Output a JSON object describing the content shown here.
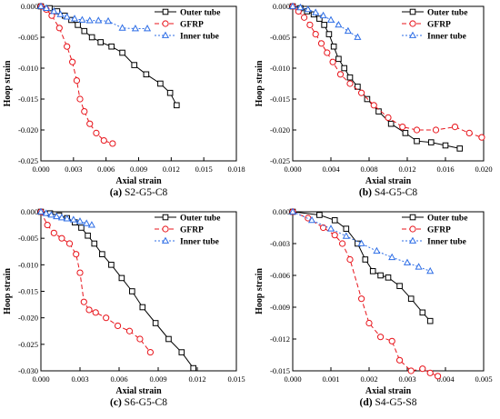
{
  "chart_data": [
    {
      "type": "line",
      "caption_letter": "(a)",
      "caption_text": "S2-G5-C8",
      "xlabel": "Axial strain",
      "ylabel": "Hoop strain",
      "xlim": [
        0,
        0.018
      ],
      "ylim": [
        -0.025,
        0
      ],
      "xticks": [
        0,
        0.003,
        0.006,
        0.009,
        0.012,
        0.015,
        0.018
      ],
      "xtick_labels": [
        "0.000",
        "0.003",
        "0.006",
        "0.009",
        "0.012",
        "0.015",
        "0.018"
      ],
      "yticks": [
        0,
        -0.005,
        -0.01,
        -0.015,
        -0.02,
        -0.025
      ],
      "ytick_labels": [
        "0.000",
        "-0.005",
        "-0.010",
        "-0.015",
        "-0.020",
        "-0.025"
      ],
      "legend_position": "top-right",
      "series": [
        {
          "name": "Outer tube",
          "color": "#000000",
          "marker": "square",
          "dash": "",
          "x": [
            0,
            0.0008,
            0.0015,
            0.0022,
            0.0028,
            0.0034,
            0.004,
            0.0047,
            0.0055,
            0.0065,
            0.0075,
            0.0086,
            0.0097,
            0.011,
            0.0119,
            0.0125
          ],
          "y": [
            0,
            -0.0003,
            -0.0008,
            -0.0015,
            -0.0022,
            -0.003,
            -0.004,
            -0.005,
            -0.0058,
            -0.0065,
            -0.0075,
            -0.0095,
            -0.011,
            -0.0125,
            -0.014,
            -0.016
          ]
        },
        {
          "name": "GFRP",
          "color": "#e8141b",
          "marker": "circle",
          "dash": "5,3",
          "x": [
            0,
            0.0005,
            0.001,
            0.0017,
            0.0024,
            0.0029,
            0.0033,
            0.0036,
            0.004,
            0.0045,
            0.0051,
            0.0058,
            0.0066
          ],
          "y": [
            0,
            -0.0005,
            -0.0015,
            -0.0035,
            -0.0065,
            -0.009,
            -0.012,
            -0.015,
            -0.017,
            -0.019,
            -0.0205,
            -0.0217,
            -0.0222
          ]
        },
        {
          "name": "Inner tube",
          "color": "#2e6ee6",
          "marker": "triangle",
          "dash": "2,2",
          "x": [
            0,
            0.0005,
            0.0012,
            0.0018,
            0.0024,
            0.0031,
            0.0038,
            0.0045,
            0.0053,
            0.0062,
            0.0075,
            0.0087,
            0.0098
          ],
          "y": [
            0,
            -0.0003,
            -0.0008,
            -0.0013,
            -0.0017,
            -0.002,
            -0.0022,
            -0.0023,
            -0.0023,
            -0.0024,
            -0.0035,
            -0.0036,
            -0.0036
          ]
        }
      ]
    },
    {
      "type": "line",
      "caption_letter": "(b)",
      "caption_text": "S4-G5-C8",
      "xlabel": "Axial strain",
      "ylabel": "Hoop strain",
      "xlim": [
        0,
        0.02
      ],
      "ylim": [
        -0.025,
        0
      ],
      "xticks": [
        0,
        0.004,
        0.008,
        0.012,
        0.016,
        0.02
      ],
      "xtick_labels": [
        "0.000",
        "0.004",
        "0.008",
        "0.012",
        "0.016",
        "0.020"
      ],
      "yticks": [
        0,
        -0.005,
        -0.01,
        -0.015,
        -0.02,
        -0.025
      ],
      "ytick_labels": [
        "0.000",
        "-0.005",
        "-0.010",
        "-0.015",
        "-0.020",
        "-0.025"
      ],
      "legend_position": "top-right",
      "series": [
        {
          "name": "Outer tube",
          "color": "#000000",
          "marker": "square",
          "dash": "",
          "x": [
            0,
            0.0008,
            0.0015,
            0.0022,
            0.0028,
            0.0033,
            0.0038,
            0.0043,
            0.0048,
            0.0054,
            0.006,
            0.0068,
            0.0078,
            0.009,
            0.0103,
            0.0118,
            0.013,
            0.0145,
            0.016,
            0.0175
          ],
          "y": [
            0,
            -0.0003,
            -0.0008,
            -0.0013,
            -0.002,
            -0.003,
            -0.0045,
            -0.0065,
            -0.0085,
            -0.01,
            -0.0115,
            -0.013,
            -0.015,
            -0.017,
            -0.019,
            -0.0205,
            -0.0218,
            -0.022,
            -0.0225,
            -0.023
          ]
        },
        {
          "name": "GFRP",
          "color": "#e8141b",
          "marker": "circle",
          "dash": "5,3",
          "x": [
            0,
            0.0006,
            0.0012,
            0.0018,
            0.0024,
            0.003,
            0.0036,
            0.0042,
            0.005,
            0.006,
            0.0072,
            0.0085,
            0.01,
            0.0115,
            0.013,
            0.015,
            0.017,
            0.0185,
            0.0198
          ],
          "y": [
            0,
            -0.0008,
            -0.0018,
            -0.003,
            -0.0045,
            -0.006,
            -0.0075,
            -0.009,
            -0.011,
            -0.0125,
            -0.014,
            -0.016,
            -0.018,
            -0.0195,
            -0.02,
            -0.02,
            -0.0195,
            -0.0205,
            -0.0212
          ]
        },
        {
          "name": "Inner tube",
          "color": "#2e6ee6",
          "marker": "triangle",
          "dash": "2,2",
          "x": [
            0,
            0.0008,
            0.0016,
            0.0024,
            0.0032,
            0.004,
            0.0048,
            0.0058,
            0.0068
          ],
          "y": [
            0,
            -0.0002,
            -0.0005,
            -0.001,
            -0.0015,
            -0.0022,
            -0.003,
            -0.004,
            -0.005
          ]
        }
      ]
    },
    {
      "type": "line",
      "caption_letter": "(c)",
      "caption_text": "S6-G5-C8",
      "xlabel": "Axial strain",
      "ylabel": "Hoop strain",
      "xlim": [
        0,
        0.015
      ],
      "ylim": [
        -0.03,
        0
      ],
      "xticks": [
        0,
        0.003,
        0.006,
        0.009,
        0.012,
        0.015
      ],
      "xtick_labels": [
        "0.000",
        "0.003",
        "0.006",
        "0.009",
        "0.012",
        "0.015"
      ],
      "yticks": [
        0,
        -0.005,
        -0.01,
        -0.015,
        -0.02,
        -0.025,
        -0.03
      ],
      "ytick_labels": [
        "0.000",
        "-0.005",
        "-0.010",
        "-0.015",
        "-0.020",
        "-0.025",
        "-0.030"
      ],
      "legend_position": "top-right",
      "series": [
        {
          "name": "Outer tube",
          "color": "#000000",
          "marker": "square",
          "dash": "",
          "x": [
            0,
            0.0007,
            0.0014,
            0.002,
            0.0026,
            0.0031,
            0.0036,
            0.0041,
            0.0047,
            0.0054,
            0.0062,
            0.007,
            0.0078,
            0.0088,
            0.0098,
            0.0108,
            0.0117
          ],
          "y": [
            0,
            -0.0003,
            -0.0007,
            -0.0012,
            -0.002,
            -0.003,
            -0.0045,
            -0.006,
            -0.008,
            -0.01,
            -0.0125,
            -0.015,
            -0.018,
            -0.021,
            -0.024,
            -0.0265,
            -0.0295
          ]
        },
        {
          "name": "GFRP",
          "color": "#e8141b",
          "marker": "circle",
          "dash": "5,3",
          "x": [
            0,
            0.0005,
            0.001,
            0.0016,
            0.0022,
            0.0027,
            0.003,
            0.0033,
            0.0037,
            0.0042,
            0.005,
            0.0059,
            0.0068,
            0.0076,
            0.0084
          ],
          "y": [
            0,
            -0.0025,
            -0.004,
            -0.005,
            -0.006,
            -0.008,
            -0.0115,
            -0.017,
            -0.0185,
            -0.019,
            -0.02,
            -0.0215,
            -0.0225,
            -0.024,
            -0.0265
          ]
        },
        {
          "name": "Inner tube",
          "color": "#2e6ee6",
          "marker": "triangle",
          "dash": "2,2",
          "x": [
            0,
            0.0004,
            0.0008,
            0.0012,
            0.0016,
            0.002,
            0.0025,
            0.003,
            0.0035,
            0.0039
          ],
          "y": [
            0,
            -0.0003,
            -0.0006,
            -0.0009,
            -0.0011,
            -0.0013,
            -0.0015,
            -0.0018,
            -0.0022,
            -0.0025
          ]
        }
      ]
    },
    {
      "type": "line",
      "caption_letter": "(d)",
      "caption_text": "S4-G5-S8",
      "xlabel": "Axial strain",
      "ylabel": "Hoop strain",
      "xlim": [
        0,
        0.005
      ],
      "ylim": [
        -0.015,
        0
      ],
      "xticks": [
        0,
        0.001,
        0.002,
        0.003,
        0.004,
        0.005
      ],
      "xtick_labels": [
        "0.000",
        "0.001",
        "0.002",
        "0.003",
        "0.004",
        "0.005"
      ],
      "yticks": [
        0,
        -0.003,
        -0.006,
        -0.009,
        -0.012,
        -0.015
      ],
      "ytick_labels": [
        "0.000",
        "-0.003",
        "-0.006",
        "-0.009",
        "-0.012",
        "-0.015"
      ],
      "legend_position": "top-right",
      "series": [
        {
          "name": "Outer tube",
          "color": "#000000",
          "marker": "square",
          "dash": "",
          "x": [
            0,
            0.0007,
            0.0011,
            0.0014,
            0.0017,
            0.0019,
            0.0021,
            0.0023,
            0.0025,
            0.0028,
            0.0031,
            0.0034,
            0.0036
          ],
          "y": [
            0,
            -0.0003,
            -0.0008,
            -0.0016,
            -0.003,
            -0.0045,
            -0.0056,
            -0.006,
            -0.0062,
            -0.007,
            -0.0082,
            -0.0095,
            -0.0103
          ]
        },
        {
          "name": "GFRP",
          "color": "#e8141b",
          "marker": "circle",
          "dash": "5,3",
          "x": [
            0,
            0.0004,
            0.0008,
            0.0011,
            0.0013,
            0.0015,
            0.0018,
            0.002,
            0.0023,
            0.0026,
            0.0028,
            0.0031,
            0.0034,
            0.0036,
            0.0038
          ],
          "y": [
            0,
            -0.0006,
            -0.0015,
            -0.0022,
            -0.003,
            -0.0045,
            -0.0082,
            -0.0105,
            -0.0118,
            -0.0122,
            -0.014,
            -0.015,
            -0.0148,
            -0.0152,
            -0.0155
          ]
        },
        {
          "name": "Inner tube",
          "color": "#2e6ee6",
          "marker": "triangle",
          "dash": "2,2",
          "x": [
            0,
            0.0005,
            0.001,
            0.0014,
            0.0018,
            0.0022,
            0.0026,
            0.003,
            0.0033,
            0.0036
          ],
          "y": [
            0,
            -0.0008,
            -0.0016,
            -0.0023,
            -0.003,
            -0.0037,
            -0.0043,
            -0.0048,
            -0.0052,
            -0.0056
          ]
        }
      ]
    }
  ]
}
